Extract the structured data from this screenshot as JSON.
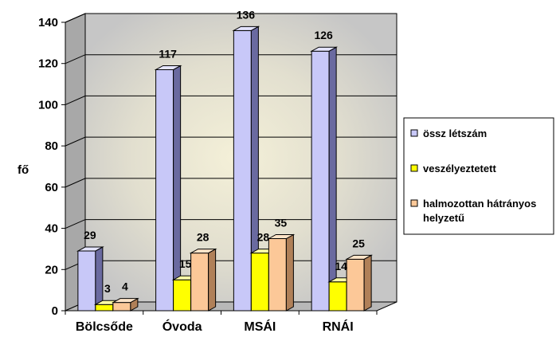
{
  "chart_data": {
    "type": "bar",
    "title": "",
    "xlabel": "",
    "ylabel": "fő",
    "ylim": [
      0,
      140
    ],
    "yticks": [
      0,
      20,
      40,
      60,
      80,
      100,
      120,
      140
    ],
    "grid": true,
    "legend_position": "right",
    "categories": [
      "Bölcsőde",
      "Óvoda",
      "MSÁI",
      "RNÁI"
    ],
    "series": [
      {
        "name": "össz létszám",
        "values": [
          29,
          117,
          136,
          126
        ],
        "color": "#c8c8f8"
      },
      {
        "name": "veszélyeztetett",
        "values": [
          3,
          15,
          28,
          14
        ],
        "color": "#ffff00"
      },
      {
        "name": "halmozottan hátrányos helyzetű",
        "values": [
          4,
          28,
          35,
          25
        ],
        "color": "#fcc898"
      }
    ],
    "legend": [
      [
        "össz létszám"
      ],
      [
        "veszélyeztetett"
      ],
      [
        "halmozottan hátrányos",
        "helyzetű"
      ]
    ]
  }
}
